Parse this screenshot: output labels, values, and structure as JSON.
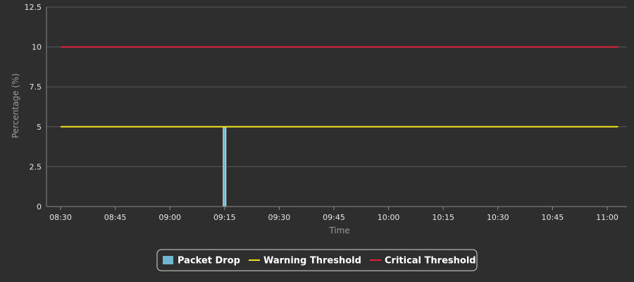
{
  "chart_data": {
    "type": "line",
    "title": "",
    "xlabel": "Time",
    "ylabel": "Percentage (%)",
    "ylim": [
      0,
      12.5
    ],
    "yticks": [
      "0",
      "2.5",
      "5",
      "7.5",
      "10",
      "12.5"
    ],
    "xticks": [
      "08:30",
      "08:45",
      "09:00",
      "09:15",
      "09:30",
      "09:45",
      "10:00",
      "10:15",
      "10:30",
      "10:45",
      "11:00"
    ],
    "xlim": [
      "08:30",
      "11:03"
    ],
    "grid": true,
    "legend_position": "bottom-center",
    "series": [
      {
        "name": "Packet Drop",
        "kind": "bar",
        "color": "#6fb7cf",
        "points": [
          {
            "x": "09:15",
            "y": 5
          }
        ]
      },
      {
        "name": "Warning Threshold",
        "kind": "line",
        "color": "#f2e21a",
        "points": [
          {
            "x": "08:30",
            "y": 5
          },
          {
            "x": "11:03",
            "y": 5
          }
        ]
      },
      {
        "name": "Critical Threshold",
        "kind": "line",
        "color": "#e0223b",
        "points": [
          {
            "x": "08:30",
            "y": 10
          },
          {
            "x": "11:03",
            "y": 10
          }
        ]
      }
    ]
  }
}
